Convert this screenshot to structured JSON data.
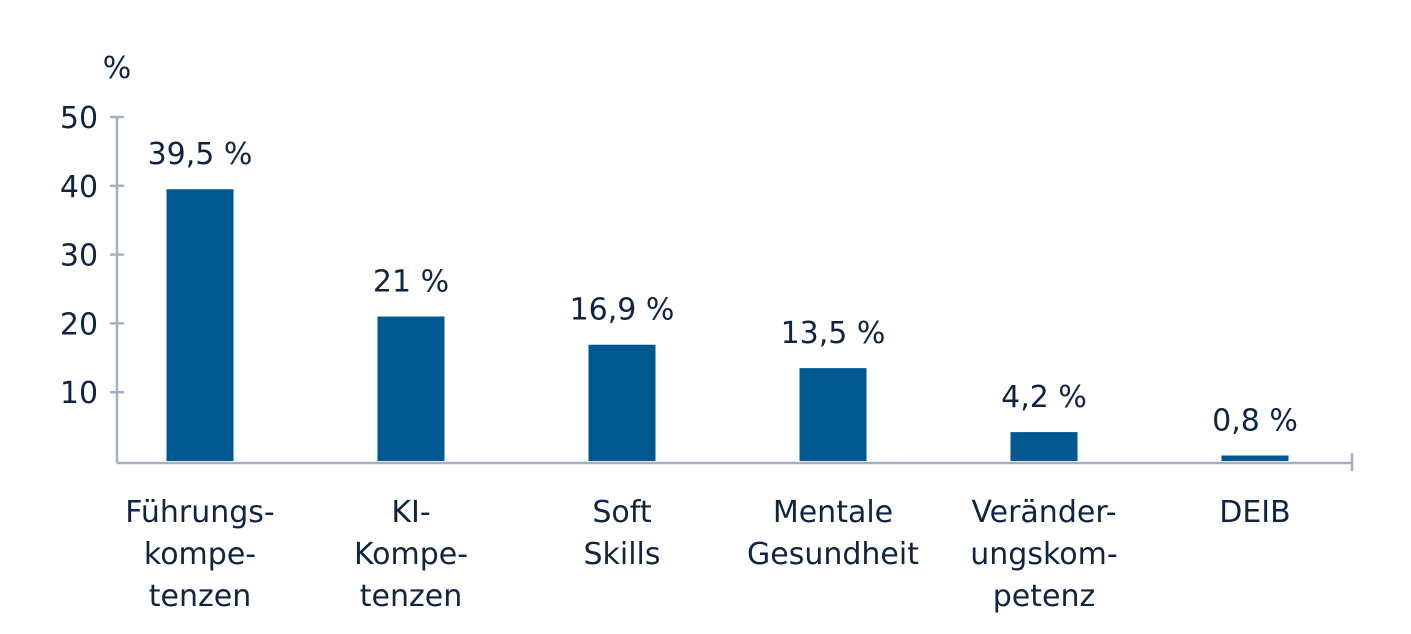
{
  "chart_data": {
    "type": "bar",
    "title": "",
    "xlabel": "",
    "ylabel": "%",
    "ylim": [
      0,
      50
    ],
    "yticks": [
      10,
      20,
      30,
      40,
      50
    ],
    "ytick_labels": [
      "10",
      "20",
      "30",
      "40",
      "50"
    ],
    "categories": [
      [
        "Führungs-",
        "kompe-",
        "tenzen"
      ],
      [
        "KI-",
        "Kompe-",
        "tenzen"
      ],
      [
        "Soft",
        "Skills"
      ],
      [
        "Mentale",
        "Gesundheit"
      ],
      [
        "Veränder-",
        "ungskom-",
        "petenz"
      ],
      [
        "DEIB"
      ]
    ],
    "values": [
      39.5,
      21,
      16.9,
      13.5,
      4.2,
      0.8
    ],
    "data_labels": [
      "39,5 %",
      "21 %",
      "16,9 %",
      "13,5 %",
      "4,2 %",
      "0,8 %"
    ],
    "grid": false,
    "colors": {
      "bar": "#005891",
      "axis": "#a4b0c0",
      "text": "#0f2440"
    }
  }
}
